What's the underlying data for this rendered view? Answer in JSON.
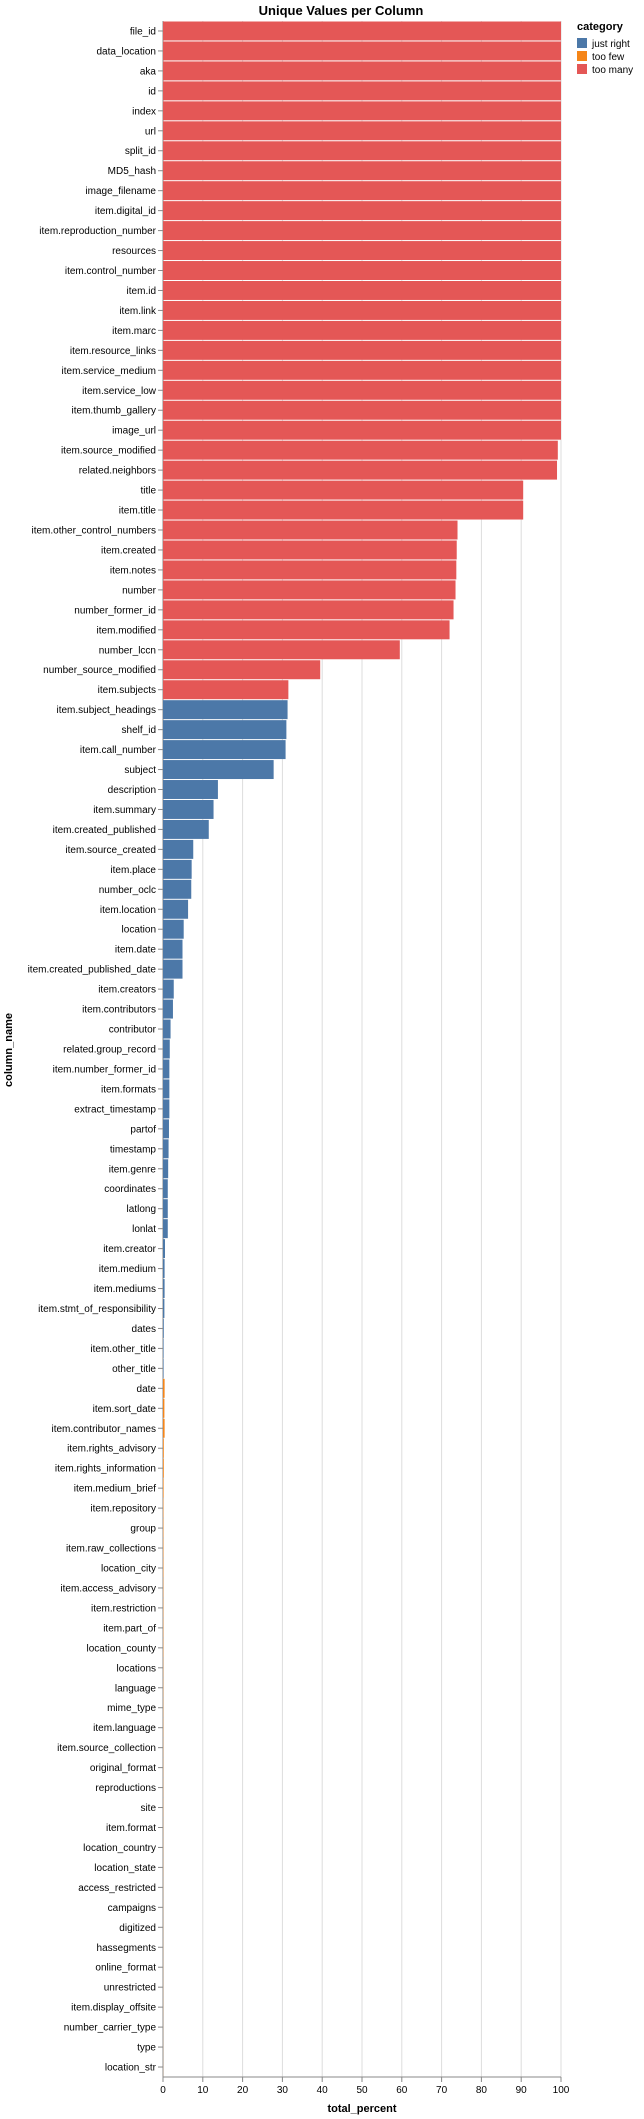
{
  "chart_data": {
    "type": "bar",
    "orientation": "horizontal",
    "title": "Unique Values per Column",
    "xlabel": "total_percent",
    "ylabel": "column_name",
    "xlim": [
      0,
      100
    ],
    "xticks": [
      0,
      10,
      20,
      30,
      40,
      50,
      60,
      70,
      80,
      90,
      100
    ],
    "grid": true,
    "legend": {
      "title": "category",
      "placement": "top-right",
      "entries": [
        {
          "name": "just right",
          "color": "#4c78a8"
        },
        {
          "name": "too few",
          "color": "#f58518"
        },
        {
          "name": "too many",
          "color": "#e45756"
        }
      ]
    },
    "bars": [
      {
        "name": "file_id",
        "value": 100,
        "category": "too many"
      },
      {
        "name": "data_location",
        "value": 100,
        "category": "too many"
      },
      {
        "name": "aka",
        "value": 100,
        "category": "too many"
      },
      {
        "name": "id",
        "value": 100,
        "category": "too many"
      },
      {
        "name": "index",
        "value": 100,
        "category": "too many"
      },
      {
        "name": "url",
        "value": 100,
        "category": "too many"
      },
      {
        "name": "split_id",
        "value": 100,
        "category": "too many"
      },
      {
        "name": "MD5_hash",
        "value": 100,
        "category": "too many"
      },
      {
        "name": "image_filename",
        "value": 100,
        "category": "too many"
      },
      {
        "name": "item.digital_id",
        "value": 100,
        "category": "too many"
      },
      {
        "name": "item.reproduction_number",
        "value": 100,
        "category": "too many"
      },
      {
        "name": "resources",
        "value": 100,
        "category": "too many"
      },
      {
        "name": "item.control_number",
        "value": 100,
        "category": "too many"
      },
      {
        "name": "item.id",
        "value": 100,
        "category": "too many"
      },
      {
        "name": "item.link",
        "value": 100,
        "category": "too many"
      },
      {
        "name": "item.marc",
        "value": 100,
        "category": "too many"
      },
      {
        "name": "item.resource_links",
        "value": 100,
        "category": "too many"
      },
      {
        "name": "item.service_medium",
        "value": 100,
        "category": "too many"
      },
      {
        "name": "item.service_low",
        "value": 100,
        "category": "too many"
      },
      {
        "name": "item.thumb_gallery",
        "value": 100,
        "category": "too many"
      },
      {
        "name": "image_url",
        "value": 100,
        "category": "too many"
      },
      {
        "name": "item.source_modified",
        "value": 99.2,
        "category": "too many"
      },
      {
        "name": "related.neighbors",
        "value": 99,
        "category": "too many"
      },
      {
        "name": "title",
        "value": 90.5,
        "category": "too many"
      },
      {
        "name": "item.title",
        "value": 90.5,
        "category": "too many"
      },
      {
        "name": "item.other_control_numbers",
        "value": 74,
        "category": "too many"
      },
      {
        "name": "item.created",
        "value": 73.8,
        "category": "too many"
      },
      {
        "name": "item.notes",
        "value": 73.7,
        "category": "too many"
      },
      {
        "name": "number",
        "value": 73.5,
        "category": "too many"
      },
      {
        "name": "number_former_id",
        "value": 73,
        "category": "too many"
      },
      {
        "name": "item.modified",
        "value": 72,
        "category": "too many"
      },
      {
        "name": "number_lccn",
        "value": 59.5,
        "category": "too many"
      },
      {
        "name": "number_source_modified",
        "value": 39.5,
        "category": "too many"
      },
      {
        "name": "item.subjects",
        "value": 31.5,
        "category": "too many"
      },
      {
        "name": "item.subject_headings",
        "value": 31.3,
        "category": "just right"
      },
      {
        "name": "shelf_id",
        "value": 31,
        "category": "just right"
      },
      {
        "name": "item.call_number",
        "value": 30.8,
        "category": "just right"
      },
      {
        "name": "subject",
        "value": 27.8,
        "category": "just right"
      },
      {
        "name": "description",
        "value": 13.8,
        "category": "just right"
      },
      {
        "name": "item.summary",
        "value": 12.7,
        "category": "just right"
      },
      {
        "name": "item.created_published",
        "value": 11.5,
        "category": "just right"
      },
      {
        "name": "item.source_created",
        "value": 7.6,
        "category": "just right"
      },
      {
        "name": "item.place",
        "value": 7.2,
        "category": "just right"
      },
      {
        "name": "number_oclc",
        "value": 7.1,
        "category": "just right"
      },
      {
        "name": "item.location",
        "value": 6.3,
        "category": "just right"
      },
      {
        "name": "location",
        "value": 5.2,
        "category": "just right"
      },
      {
        "name": "item.date",
        "value": 4.9,
        "category": "just right"
      },
      {
        "name": "item.created_published_date",
        "value": 4.9,
        "category": "just right"
      },
      {
        "name": "item.creators",
        "value": 2.7,
        "category": "just right"
      },
      {
        "name": "item.contributors",
        "value": 2.5,
        "category": "just right"
      },
      {
        "name": "contributor",
        "value": 1.9,
        "category": "just right"
      },
      {
        "name": "related.group_record",
        "value": 1.7,
        "category": "just right"
      },
      {
        "name": "item.number_former_id",
        "value": 1.6,
        "category": "just right"
      },
      {
        "name": "item.formats",
        "value": 1.6,
        "category": "just right"
      },
      {
        "name": "extract_timestamp",
        "value": 1.6,
        "category": "just right"
      },
      {
        "name": "partof",
        "value": 1.5,
        "category": "just right"
      },
      {
        "name": "timestamp",
        "value": 1.4,
        "category": "just right"
      },
      {
        "name": "item.genre",
        "value": 1.3,
        "category": "just right"
      },
      {
        "name": "coordinates",
        "value": 1.2,
        "category": "just right"
      },
      {
        "name": "latlong",
        "value": 1.2,
        "category": "just right"
      },
      {
        "name": "lonlat",
        "value": 1.2,
        "category": "just right"
      },
      {
        "name": "item.creator",
        "value": 0.5,
        "category": "just right"
      },
      {
        "name": "item.medium",
        "value": 0.4,
        "category": "just right"
      },
      {
        "name": "item.mediums",
        "value": 0.4,
        "category": "just right"
      },
      {
        "name": "item.stmt_of_responsibility",
        "value": 0.35,
        "category": "just right"
      },
      {
        "name": "dates",
        "value": 0.2,
        "category": "just right"
      },
      {
        "name": "item.other_title",
        "value": 0.15,
        "category": "just right"
      },
      {
        "name": "other_title",
        "value": 0.15,
        "category": "just right"
      },
      {
        "name": "date",
        "value": 0.4,
        "category": "too few"
      },
      {
        "name": "item.sort_date",
        "value": 0.35,
        "category": "too few"
      },
      {
        "name": "item.contributor_names",
        "value": 0.4,
        "category": "too few"
      },
      {
        "name": "item.rights_advisory",
        "value": 0.2,
        "category": "too few"
      },
      {
        "name": "item.rights_information",
        "value": 0.2,
        "category": "too few"
      },
      {
        "name": "item.medium_brief",
        "value": 0.15,
        "category": "too few"
      },
      {
        "name": "item.repository",
        "value": 0.1,
        "category": "too few"
      },
      {
        "name": "group",
        "value": 0.1,
        "category": "too few"
      },
      {
        "name": "item.raw_collections",
        "value": 0.1,
        "category": "too few"
      },
      {
        "name": "location_city",
        "value": 0.1,
        "category": "too few"
      },
      {
        "name": "item.access_advisory",
        "value": 0.08,
        "category": "too few"
      },
      {
        "name": "item.restriction",
        "value": 0.08,
        "category": "too few"
      },
      {
        "name": "item.part_of",
        "value": 0.08,
        "category": "too few"
      },
      {
        "name": "location_county",
        "value": 0.08,
        "category": "too few"
      },
      {
        "name": "locations",
        "value": 0.06,
        "category": "too few"
      },
      {
        "name": "language",
        "value": 0.06,
        "category": "too few"
      },
      {
        "name": "mime_type",
        "value": 0.06,
        "category": "too few"
      },
      {
        "name": "item.language",
        "value": 0.06,
        "category": "too few"
      },
      {
        "name": "item.source_collection",
        "value": 0.05,
        "category": "too few"
      },
      {
        "name": "original_format",
        "value": 0.05,
        "category": "too few"
      },
      {
        "name": "reproductions",
        "value": 0.05,
        "category": "too few"
      },
      {
        "name": "site",
        "value": 0.05,
        "category": "too few"
      },
      {
        "name": "item.format",
        "value": 0.04,
        "category": "too few"
      },
      {
        "name": "location_country",
        "value": 0.04,
        "category": "too few"
      },
      {
        "name": "location_state",
        "value": 0.04,
        "category": "too few"
      },
      {
        "name": "access_restricted",
        "value": 0.03,
        "category": "too few"
      },
      {
        "name": "campaigns",
        "value": 0.03,
        "category": "too few"
      },
      {
        "name": "digitized",
        "value": 0.03,
        "category": "too few"
      },
      {
        "name": "hassegments",
        "value": 0.03,
        "category": "too few"
      },
      {
        "name": "online_format",
        "value": 0.03,
        "category": "too few"
      },
      {
        "name": "unrestricted",
        "value": 0.03,
        "category": "too few"
      },
      {
        "name": "item.display_offsite",
        "value": 0.03,
        "category": "too few"
      },
      {
        "name": "number_carrier_type",
        "value": 0.02,
        "category": "too few"
      },
      {
        "name": "type",
        "value": 0.02,
        "category": "too few"
      },
      {
        "name": "location_str",
        "value": 0.02,
        "category": "too few"
      }
    ]
  }
}
